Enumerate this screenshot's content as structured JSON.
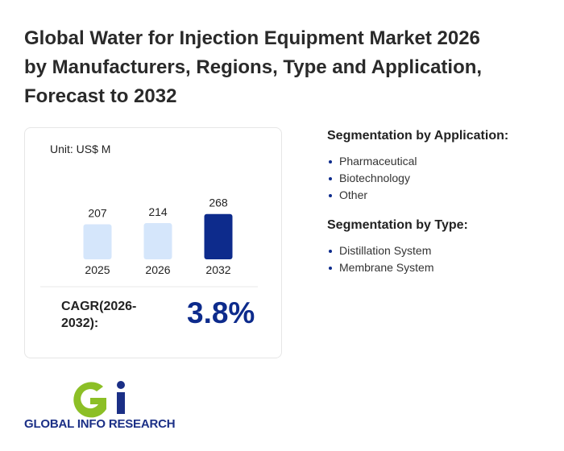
{
  "title_lines": [
    "Global Water for Injection Equipment Market 2026",
    "by Manufacturers, Regions, Type and Application,",
    "Forecast to 2032"
  ],
  "chart_data": {
    "type": "bar",
    "unit": "Unit: US$ M",
    "categories": [
      "2025",
      "2026",
      "2032"
    ],
    "values": [
      207,
      214,
      268
    ],
    "colors": [
      "#d5e6fb",
      "#d5e6fb",
      "#0d2b8c"
    ]
  },
  "cagr": {
    "label": "CAGR(2026-2032):",
    "value": "3.8%"
  },
  "segments": [
    {
      "heading": "Segmentation by Application:",
      "items": [
        "Pharmaceutical",
        "Biotechnology",
        "Other"
      ]
    },
    {
      "heading": "Segmentation by Type:",
      "items": [
        "Distillation System",
        "Membrane System"
      ]
    }
  ],
  "logo_text": "GLOBAL INFO RESEARCH"
}
